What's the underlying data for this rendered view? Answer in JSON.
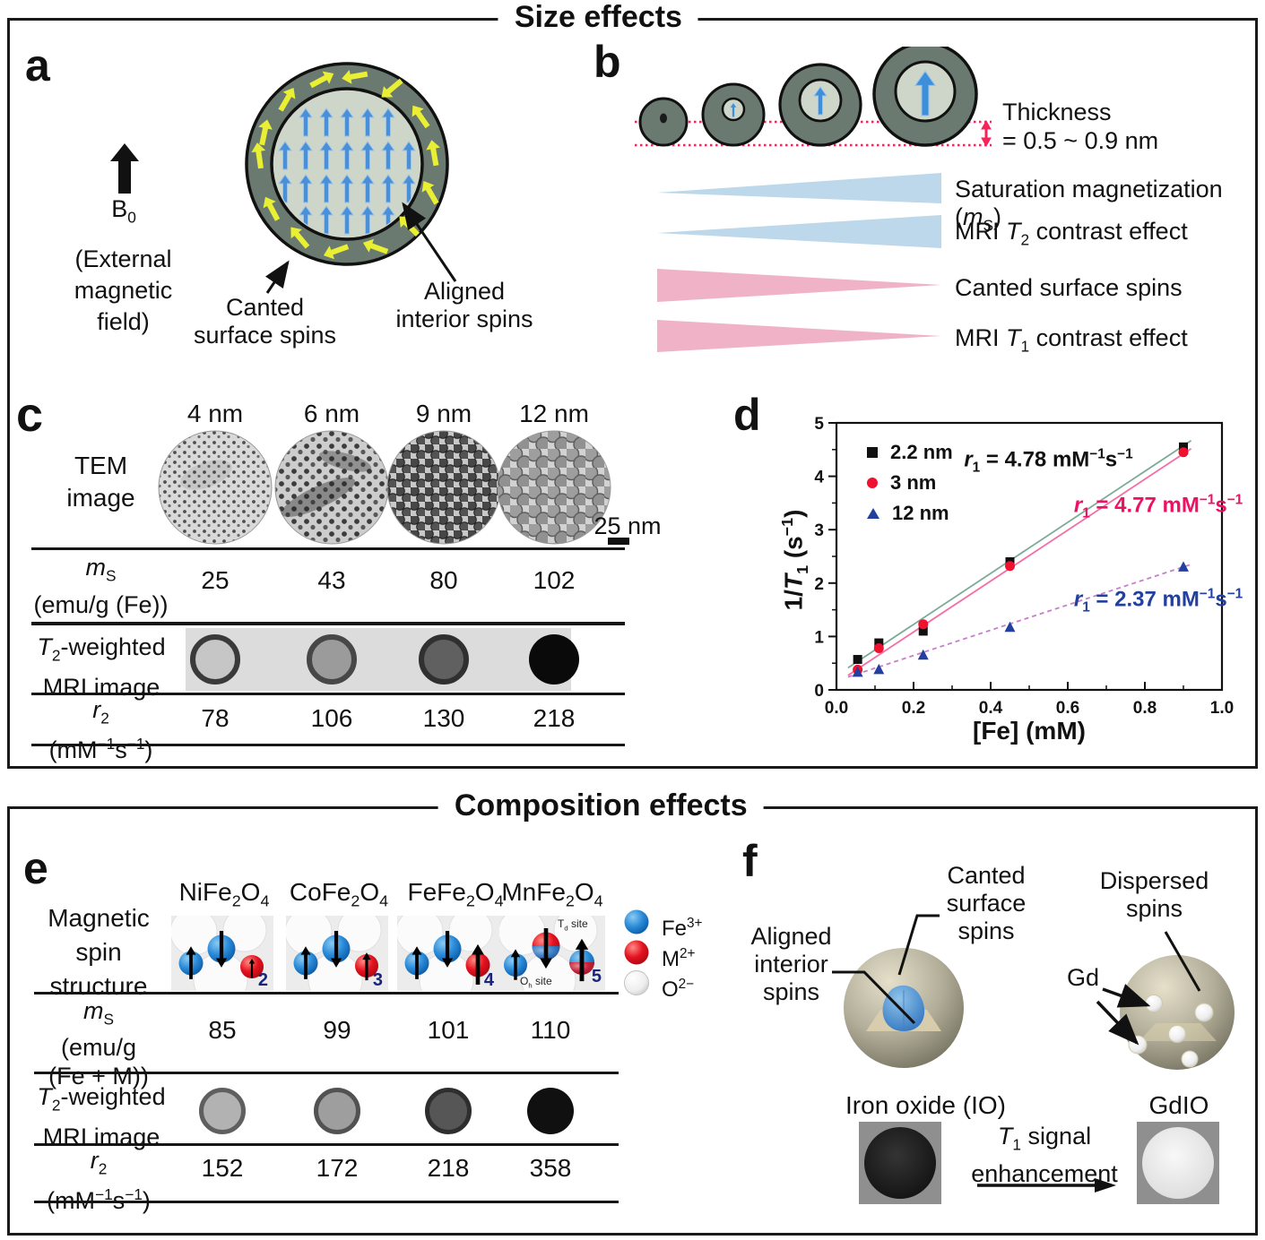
{
  "sections": {
    "size": {
      "title": "Size effects"
    },
    "composition": {
      "title": "Composition effects"
    }
  },
  "colors": {
    "shell": "#6b7a70",
    "core": "#ced5c9",
    "spin_blue": "#3e8fd9",
    "spin_yellow": "#e9ef33",
    "thickness_red": "#f5245a",
    "tri_blue": "#bcd8ea",
    "tri_pink": "#f0b2c6",
    "ink": "#161616"
  },
  "panel_a": {
    "letter": "a",
    "b0_rich": [
      "B",
      [
        "sub",
        "0"
      ]
    ],
    "external_rich": [
      "(External",
      [
        "br"
      ],
      "magnetic",
      [
        "br"
      ],
      "field)"
    ],
    "canted_rich": [
      "Canted",
      [
        "br"
      ],
      "surface spins"
    ],
    "aligned_rich": [
      "Aligned",
      [
        "br"
      ],
      "interior spins"
    ]
  },
  "panel_b": {
    "letter": "b",
    "thickness_line1": "Thickness",
    "thickness_line2": "= 0.5 ~ 0.9 nm",
    "rows": [
      {
        "label_rich": [
          "Saturation magnetization (",
          [
            "i",
            "m"
          ],
          [
            "sub",
            "S"
          ],
          ")"
        ],
        "direction": "increasing",
        "color": "#bcd8ea"
      },
      {
        "label_rich": [
          "MRI ",
          [
            "i",
            "T"
          ],
          [
            "sub",
            "2"
          ],
          " contrast effect"
        ],
        "direction": "increasing",
        "color": "#bcd8ea"
      },
      {
        "label_rich": [
          "Canted surface spins"
        ],
        "direction": "decreasing",
        "color": "#f0b2c6"
      },
      {
        "label_rich": [
          "MRI ",
          [
            "i",
            "T"
          ],
          [
            "sub",
            "1"
          ],
          " contrast effect"
        ],
        "direction": "decreasing",
        "color": "#f0b2c6"
      }
    ]
  },
  "panel_c": {
    "letter": "c",
    "sizes": [
      "4 nm",
      "6 nm",
      "9 nm",
      "12 nm"
    ],
    "scale_bar": "25 nm",
    "row_tem_rich": [
      "TEM",
      [
        "br"
      ],
      "image"
    ],
    "row_ms_rich": [
      [
        "i",
        "m"
      ],
      [
        "sub",
        "S"
      ],
      [
        "br"
      ],
      "(emu/g (Fe))"
    ],
    "ms_values": [
      "25",
      "43",
      "80",
      "102"
    ],
    "row_t2_rich": [
      [
        "i",
        "T"
      ],
      [
        "sub",
        "2"
      ],
      "-weighted",
      [
        "br"
      ],
      "MRI image"
    ],
    "row_r2_rich": [
      [
        "i",
        "r"
      ],
      [
        "sub",
        "2"
      ],
      [
        "br"
      ],
      "(mM",
      [
        "sup",
        "−1"
      ],
      "s",
      [
        "sup",
        "−1"
      ],
      ")"
    ],
    "r2_values": [
      "78",
      "106",
      "130",
      "218"
    ]
  },
  "chart_data": {
    "type": "scatter",
    "panel_letter": "d",
    "xlabel": "[Fe] (mM)",
    "ylabel": "1/T1 (s-1)",
    "ylabel_rich": [
      "1/",
      [
        "i",
        "T"
      ],
      [
        "sub",
        "1"
      ],
      " (s",
      [
        "sup",
        "−1"
      ],
      ")"
    ],
    "xlim": [
      0,
      1
    ],
    "ylim": [
      0,
      5
    ],
    "x_tick_labels": [
      "0.0",
      "0.2",
      "0.4",
      "0.6",
      "0.8",
      "1.0"
    ],
    "y_tick_labels": [
      "0",
      "1",
      "2",
      "3",
      "4",
      "5"
    ],
    "x_minor_step": 0.1,
    "y_minor_step": 0.5,
    "grid": false,
    "legend_position": "top-left",
    "series": [
      {
        "name": "2.2 nm",
        "marker": "square",
        "color": "#111111",
        "x": [
          0.055,
          0.11,
          0.225,
          0.45,
          0.9
        ],
        "y": [
          0.57,
          0.88,
          1.1,
          2.4,
          4.55
        ],
        "fit": {
          "slope": 4.78,
          "intercept": 0.27,
          "color": "#7cab96",
          "dash": ""
        }
      },
      {
        "name": "3 nm",
        "marker": "circle",
        "color": "#ee1130",
        "x": [
          0.055,
          0.11,
          0.225,
          0.45,
          0.9
        ],
        "y": [
          0.38,
          0.78,
          1.23,
          2.32,
          4.45
        ],
        "fit": {
          "slope": 4.77,
          "intercept": 0.13,
          "color": "#f46ea5",
          "dash": ""
        }
      },
      {
        "name": "12 nm",
        "marker": "triangle",
        "color": "#23409f",
        "x": [
          0.055,
          0.11,
          0.225,
          0.45,
          0.9
        ],
        "y": [
          0.33,
          0.38,
          0.65,
          1.17,
          2.3
        ],
        "fit": {
          "slope": 2.37,
          "intercept": 0.17,
          "color": "#c67fcb",
          "dash": "5,4"
        }
      }
    ],
    "annotations": [
      {
        "rich": [
          [
            "i",
            "r"
          ],
          [
            "sub",
            "1"
          ],
          " = 4.78 mM",
          [
            "sup",
            "−1"
          ],
          "s",
          [
            "sup",
            "−1"
          ]
        ],
        "x": 0.55,
        "y": 4.28,
        "color": "#111111"
      },
      {
        "rich": [
          [
            "i",
            "r"
          ],
          [
            "sub",
            "1"
          ],
          " = 4.77 mM",
          [
            "sup",
            "−1"
          ],
          "s",
          [
            "sup",
            "−1"
          ]
        ],
        "x": 0.835,
        "y": 3.42,
        "color": "#ed1164"
      },
      {
        "rich": [
          [
            "i",
            "r"
          ],
          [
            "sub",
            "1"
          ],
          " = 2.37 mM",
          [
            "sup",
            "−1"
          ],
          "s",
          [
            "sup",
            "−1"
          ]
        ],
        "x": 0.835,
        "y": 1.66,
        "color": "#23409f"
      }
    ]
  },
  "panel_e": {
    "letter": "e",
    "row_structure_rich": [
      "Magnetic",
      [
        "br"
      ],
      "spin",
      [
        "br"
      ],
      "structure"
    ],
    "compounds": [
      {
        "name_rich": [
          "NiFe",
          [
            "sub",
            "2"
          ],
          "O",
          [
            "sub",
            "4"
          ]
        ],
        "moment": "2"
      },
      {
        "name_rich": [
          "CoFe",
          [
            "sub",
            "2"
          ],
          "O",
          [
            "sub",
            "4"
          ]
        ],
        "moment": "3"
      },
      {
        "name_rich": [
          "FeFe",
          [
            "sub",
            "2"
          ],
          "O",
          [
            "sub",
            "4"
          ]
        ],
        "moment": "4"
      },
      {
        "name_rich": [
          "MnFe",
          [
            "sub",
            "2"
          ],
          "O",
          [
            "sub",
            "4"
          ]
        ],
        "moment": "5"
      }
    ],
    "site_labels": {
      "td_rich": [
        "T",
        [
          "sub",
          "d"
        ],
        " site"
      ],
      "oh_rich": [
        "O",
        [
          "sub",
          "h"
        ],
        " site"
      ]
    },
    "legend": [
      {
        "swatch": "#2f9ce0",
        "label_rich": [
          "Fe",
          [
            "sup",
            "3+"
          ]
        ]
      },
      {
        "swatch": "#ea1222",
        "label_rich": [
          "M",
          [
            "sup",
            "2+"
          ]
        ]
      },
      {
        "swatch": "#ffffff",
        "label_rich": [
          "O",
          [
            "sup",
            "2−"
          ]
        ]
      }
    ],
    "row_ms_rich": [
      [
        "i",
        "m"
      ],
      [
        "sub",
        "S"
      ],
      [
        "br"
      ],
      "(emu/g",
      [
        "br"
      ],
      "(Fe + M))"
    ],
    "ms_values": [
      "85",
      "99",
      "101",
      "110"
    ],
    "row_t2_rich": [
      [
        "i",
        "T"
      ],
      [
        "sub",
        "2"
      ],
      "-weighted",
      [
        "br"
      ],
      "MRI image"
    ],
    "row_r2_rich": [
      [
        "i",
        "r"
      ],
      [
        "sub",
        "2"
      ],
      [
        "br"
      ],
      "(mM",
      [
        "sup",
        "−1"
      ],
      "s",
      [
        "sup",
        "−1"
      ],
      ")"
    ],
    "r2_values": [
      "152",
      "172",
      "218",
      "358"
    ]
  },
  "panel_f": {
    "letter": "f",
    "aligned_rich": [
      "Aligned",
      [
        "br"
      ],
      "interior",
      [
        "br"
      ],
      "spins"
    ],
    "canted_rich": [
      "Canted",
      [
        "br"
      ],
      "surface",
      [
        "br"
      ],
      "spins"
    ],
    "dispersed_rich": [
      "Dispersed",
      [
        "br"
      ],
      "spins"
    ],
    "gd_label": "Gd",
    "io_label": "Iron oxide (IO)",
    "gdio_label": "GdIO",
    "enhancement_rich": [
      [
        "i",
        "T"
      ],
      [
        "sub",
        "1"
      ],
      " signal",
      [
        "br"
      ],
      "enhancement"
    ]
  }
}
